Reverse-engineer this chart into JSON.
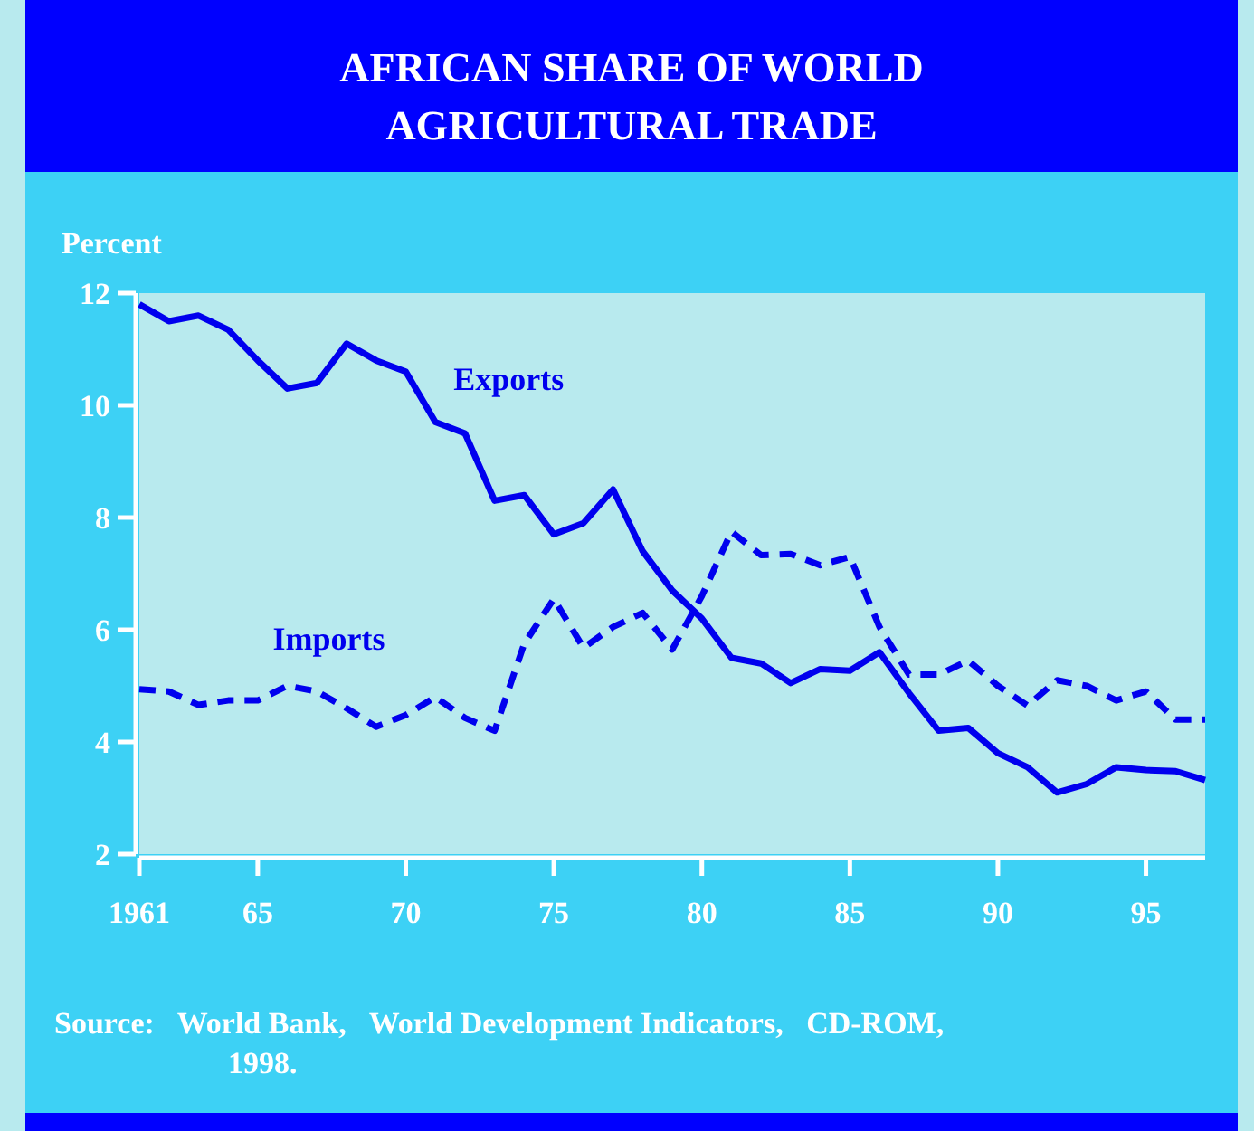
{
  "chart_data": {
    "type": "line",
    "title": "AFRICAN SHARE OF WORLD AGRICULTURAL TRADE",
    "ylabel": "Percent",
    "annotations": [
      "Source:   World Bank,   World Development Indicators,   CD-ROM, 1998."
    ],
    "x": [
      1961,
      1962,
      1963,
      1964,
      1965,
      1966,
      1967,
      1968,
      1969,
      1970,
      1971,
      1972,
      1973,
      1974,
      1975,
      1976,
      1977,
      1978,
      1979,
      1980,
      1981,
      1982,
      1983,
      1984,
      1985,
      1986,
      1987,
      1988,
      1989,
      1990,
      1991,
      1992,
      1993,
      1994,
      1995,
      1996,
      1997
    ],
    "series": [
      {
        "name": "Exports",
        "color": "#0000ee",
        "line_style": "solid",
        "values": [
          11.8,
          11.5,
          11.6,
          11.35,
          10.8,
          10.3,
          10.4,
          11.1,
          10.8,
          10.6,
          9.7,
          9.5,
          8.3,
          8.4,
          7.7,
          7.9,
          8.5,
          7.4,
          6.7,
          6.2,
          5.5,
          5.4,
          5.05,
          5.3,
          5.27,
          5.6,
          4.87,
          4.2,
          4.25,
          3.8,
          3.55,
          3.1,
          3.25,
          3.55,
          3.5,
          3.48,
          3.32
        ]
      },
      {
        "name": "Imports",
        "color": "#0000ee",
        "line_style": "dashed",
        "values": [
          4.94,
          4.9,
          4.66,
          4.74,
          4.74,
          5.0,
          4.9,
          4.6,
          4.27,
          4.48,
          4.8,
          4.43,
          4.2,
          5.75,
          6.55,
          5.68,
          6.05,
          6.3,
          5.65,
          6.6,
          7.75,
          7.33,
          7.35,
          7.15,
          7.3,
          6.05,
          5.2,
          5.2,
          5.45,
          5.0,
          4.65,
          5.1,
          5.0,
          4.74,
          4.9,
          4.4,
          4.4
        ]
      }
    ],
    "xlim": [
      1961,
      1997
    ],
    "xticks": [
      {
        "value": 1961,
        "label": "1961"
      },
      {
        "value": 1965,
        "label": "65"
      },
      {
        "value": 1970,
        "label": "70"
      },
      {
        "value": 1975,
        "label": "75"
      },
      {
        "value": 1980,
        "label": "80"
      },
      {
        "value": 1985,
        "label": "85"
      },
      {
        "value": 1990,
        "label": "90"
      },
      {
        "value": 1995,
        "label": "95"
      }
    ],
    "ylim": [
      2,
      12
    ],
    "yticks": [
      2,
      4,
      6,
      8,
      10,
      12
    ],
    "grid": false,
    "legend": false,
    "marker": "none"
  }
}
